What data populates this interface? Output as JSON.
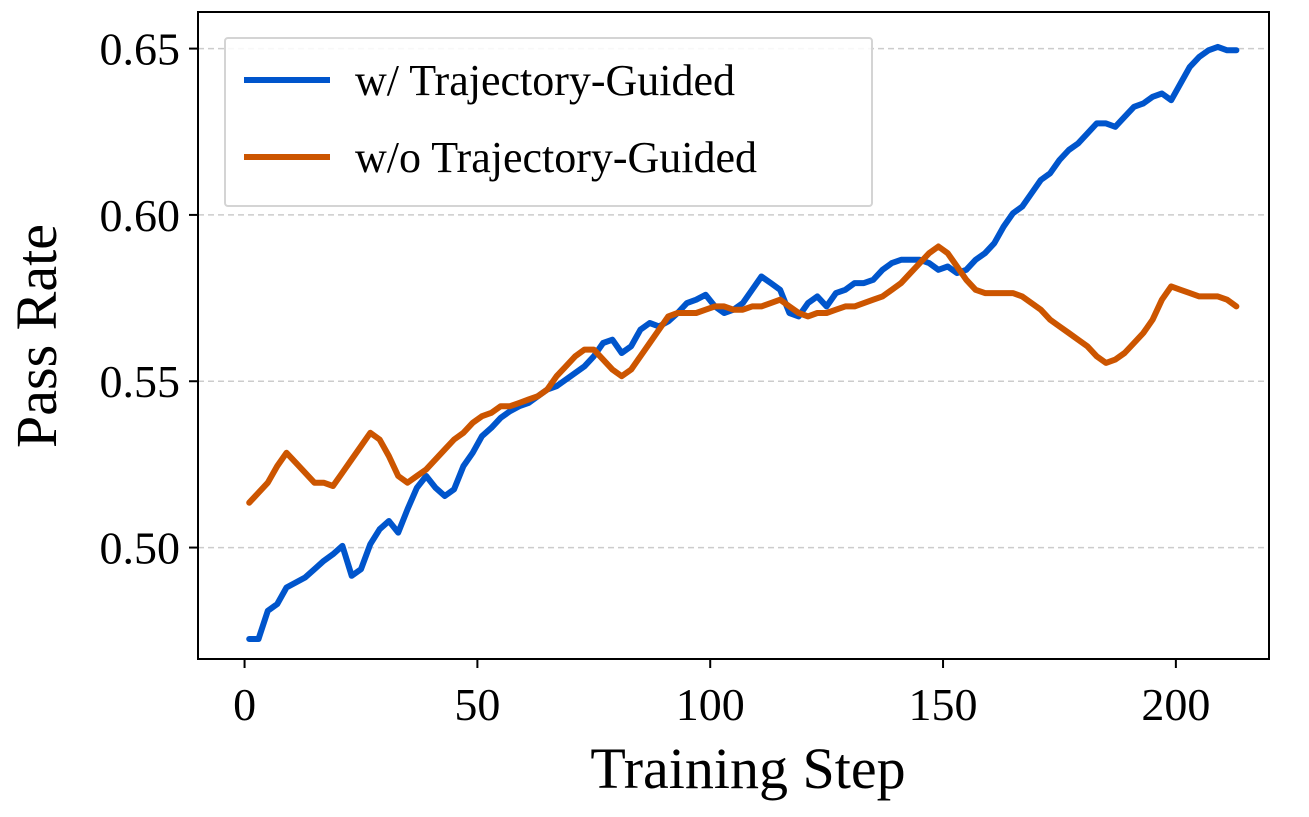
{
  "chart_data": {
    "type": "line",
    "title": "",
    "xlabel": "Training Step",
    "ylabel": "Pass Rate",
    "xlim": [
      -10,
      220
    ],
    "ylim": [
      0.4665,
      0.661
    ],
    "xticks": [
      0,
      50,
      100,
      150,
      200
    ],
    "xtick_labels": [
      "0",
      "50",
      "100",
      "150",
      "200"
    ],
    "yticks": [
      0.5,
      0.55,
      0.6,
      0.65
    ],
    "ytick_labels": [
      "0.50",
      "0.55",
      "0.60",
      "0.65"
    ],
    "grid": "horizontal dashed",
    "legend_position": "top-left",
    "series": [
      {
        "name": "w/ Trajectory-Guided",
        "color": "#0055CC",
        "x": [
          1,
          3,
          5,
          7,
          9,
          11,
          13,
          15,
          17,
          19,
          21,
          23,
          25,
          27,
          29,
          31,
          33,
          35,
          37,
          39,
          41,
          43,
          45,
          47,
          49,
          51,
          53,
          55,
          57,
          59,
          61,
          63,
          65,
          67,
          69,
          71,
          73,
          75,
          77,
          79,
          81,
          83,
          85,
          87,
          89,
          91,
          93,
          95,
          97,
          99,
          101,
          103,
          105,
          107,
          109,
          111,
          113,
          115,
          117,
          119,
          121,
          123,
          125,
          127,
          129,
          131,
          133,
          135,
          137,
          139,
          141,
          143,
          145,
          147,
          149,
          151,
          153,
          155,
          157,
          159,
          161,
          163,
          165,
          167,
          169,
          171,
          173,
          175,
          177,
          179,
          181,
          183,
          185,
          187,
          189,
          191,
          193,
          195,
          197,
          199,
          201,
          203,
          205,
          207,
          209,
          211,
          213
        ],
        "values": [
          0.4725,
          0.4725,
          0.481,
          0.483,
          0.488,
          0.4895,
          0.491,
          0.4935,
          0.496,
          0.498,
          0.5005,
          0.4915,
          0.4935,
          0.501,
          0.5055,
          0.508,
          0.5045,
          0.5115,
          0.518,
          0.5215,
          0.518,
          0.5155,
          0.5175,
          0.5245,
          0.5285,
          0.5335,
          0.536,
          0.539,
          0.541,
          0.5425,
          0.5435,
          0.5455,
          0.5475,
          0.5485,
          0.5505,
          0.5525,
          0.5545,
          0.5575,
          0.5615,
          0.5625,
          0.5585,
          0.5605,
          0.5655,
          0.5675,
          0.5665,
          0.568,
          0.5705,
          0.5735,
          0.5745,
          0.576,
          0.5725,
          0.5705,
          0.5715,
          0.5735,
          0.5775,
          0.5815,
          0.5795,
          0.5775,
          0.5705,
          0.5695,
          0.5735,
          0.5755,
          0.5725,
          0.5765,
          0.5775,
          0.5795,
          0.5795,
          0.5805,
          0.5835,
          0.5855,
          0.5865,
          0.5865,
          0.5865,
          0.5855,
          0.5835,
          0.5845,
          0.5825,
          0.5835,
          0.5865,
          0.5885,
          0.5915,
          0.5965,
          0.6005,
          0.6025,
          0.6065,
          0.6105,
          0.6125,
          0.6165,
          0.6195,
          0.6215,
          0.6245,
          0.6275,
          0.6275,
          0.6265,
          0.6295,
          0.6325,
          0.6335,
          0.6355,
          0.6365,
          0.6345,
          0.6395,
          0.6445,
          0.6475,
          0.6495,
          0.6505,
          0.6495,
          0.6495
        ]
      },
      {
        "name": "w/o Trajectory-Guided",
        "color": "#CC5500",
        "x": [
          1,
          3,
          5,
          7,
          9,
          11,
          13,
          15,
          17,
          19,
          21,
          23,
          25,
          27,
          29,
          31,
          33,
          35,
          37,
          39,
          41,
          43,
          45,
          47,
          49,
          51,
          53,
          55,
          57,
          59,
          61,
          63,
          65,
          67,
          69,
          71,
          73,
          75,
          77,
          79,
          81,
          83,
          85,
          87,
          89,
          91,
          93,
          95,
          97,
          99,
          101,
          103,
          105,
          107,
          109,
          111,
          113,
          115,
          117,
          119,
          121,
          123,
          125,
          127,
          129,
          131,
          133,
          135,
          137,
          139,
          141,
          143,
          145,
          147,
          149,
          151,
          153,
          155,
          157,
          159,
          161,
          163,
          165,
          167,
          169,
          171,
          173,
          175,
          177,
          179,
          181,
          183,
          185,
          187,
          189,
          191,
          193,
          195,
          197,
          199,
          201,
          203,
          205,
          207,
          209,
          211,
          213
        ],
        "values": [
          0.5135,
          0.5165,
          0.5195,
          0.5245,
          0.5285,
          0.5255,
          0.5225,
          0.5195,
          0.5195,
          0.5185,
          0.5225,
          0.5265,
          0.5305,
          0.5345,
          0.5325,
          0.5275,
          0.5215,
          0.5195,
          0.5215,
          0.5235,
          0.5265,
          0.5295,
          0.5325,
          0.5345,
          0.5375,
          0.5395,
          0.5405,
          0.5425,
          0.5425,
          0.5435,
          0.5445,
          0.5455,
          0.5475,
          0.5515,
          0.5545,
          0.5575,
          0.5595,
          0.5595,
          0.5565,
          0.5535,
          0.5515,
          0.5535,
          0.5575,
          0.5615,
          0.5655,
          0.5695,
          0.5705,
          0.5705,
          0.5705,
          0.5715,
          0.5725,
          0.5725,
          0.5715,
          0.5715,
          0.5725,
          0.5725,
          0.5735,
          0.5745,
          0.5725,
          0.5705,
          0.5695,
          0.5705,
          0.5705,
          0.5715,
          0.5725,
          0.5725,
          0.5735,
          0.5745,
          0.5755,
          0.5775,
          0.5795,
          0.5825,
          0.5855,
          0.5885,
          0.5905,
          0.5885,
          0.5845,
          0.5805,
          0.5775,
          0.5765,
          0.5765,
          0.5765,
          0.5765,
          0.5755,
          0.5735,
          0.5715,
          0.5685,
          0.5665,
          0.5645,
          0.5625,
          0.5605,
          0.5575,
          0.5555,
          0.5565,
          0.5585,
          0.5615,
          0.5645,
          0.5685,
          0.5745,
          0.5785,
          0.5775,
          0.5765,
          0.5755,
          0.5755,
          0.5755,
          0.5745,
          0.5725
        ]
      }
    ]
  }
}
